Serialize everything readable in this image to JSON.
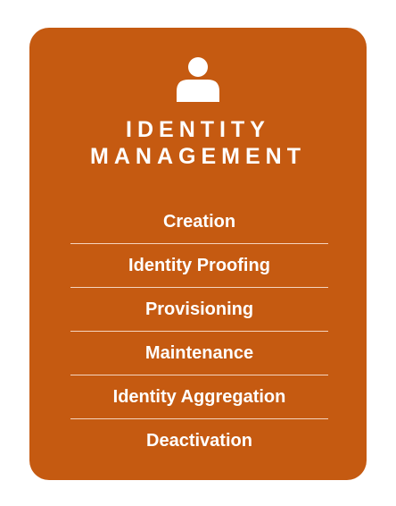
{
  "card": {
    "background_color": "#c55a11",
    "icon": "user-icon",
    "title_line1": "IDENTITY",
    "title_line2": "MANAGEMENT",
    "items": [
      {
        "label": "Creation"
      },
      {
        "label": "Identity Proofing"
      },
      {
        "label": "Provisioning"
      },
      {
        "label": "Maintenance"
      },
      {
        "label": "Identity Aggregation"
      },
      {
        "label": "Deactivation"
      }
    ]
  }
}
